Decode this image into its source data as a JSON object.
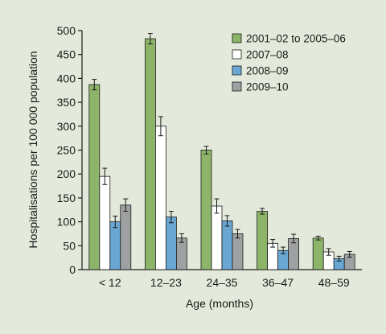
{
  "chart_data": {
    "type": "bar",
    "xlabel": "Age (months)",
    "ylabel": "Hospitalisations per 100 000 population",
    "ylim": [
      0,
      500
    ],
    "yticks": [
      0,
      50,
      100,
      150,
      200,
      250,
      300,
      350,
      400,
      450,
      500
    ],
    "categories": [
      "< 12",
      "12–23",
      "24–35",
      "36–47",
      "48–59"
    ],
    "legend_position": "top-right",
    "grid": false,
    "error_bars": true,
    "series": [
      {
        "name": "2001–02 to 2005–06",
        "color": "#8db56a",
        "values": [
          387,
          483,
          250,
          122,
          66
        ],
        "err": [
          11,
          11,
          8,
          6,
          4
        ]
      },
      {
        "name": "2007–08",
        "color": "#ffffff",
        "values": [
          195,
          300,
          133,
          55,
          37
        ],
        "err": [
          17,
          20,
          15,
          8,
          7
        ]
      },
      {
        "name": "2008–09",
        "color": "#6aa7d3",
        "values": [
          100,
          110,
          102,
          40,
          23
        ],
        "err": [
          12,
          12,
          11,
          7,
          5
        ]
      },
      {
        "name": "2009–10",
        "color": "#9ea0a2",
        "values": [
          135,
          66,
          75,
          65,
          32
        ],
        "err": [
          13,
          9,
          9,
          9,
          6
        ]
      }
    ]
  }
}
